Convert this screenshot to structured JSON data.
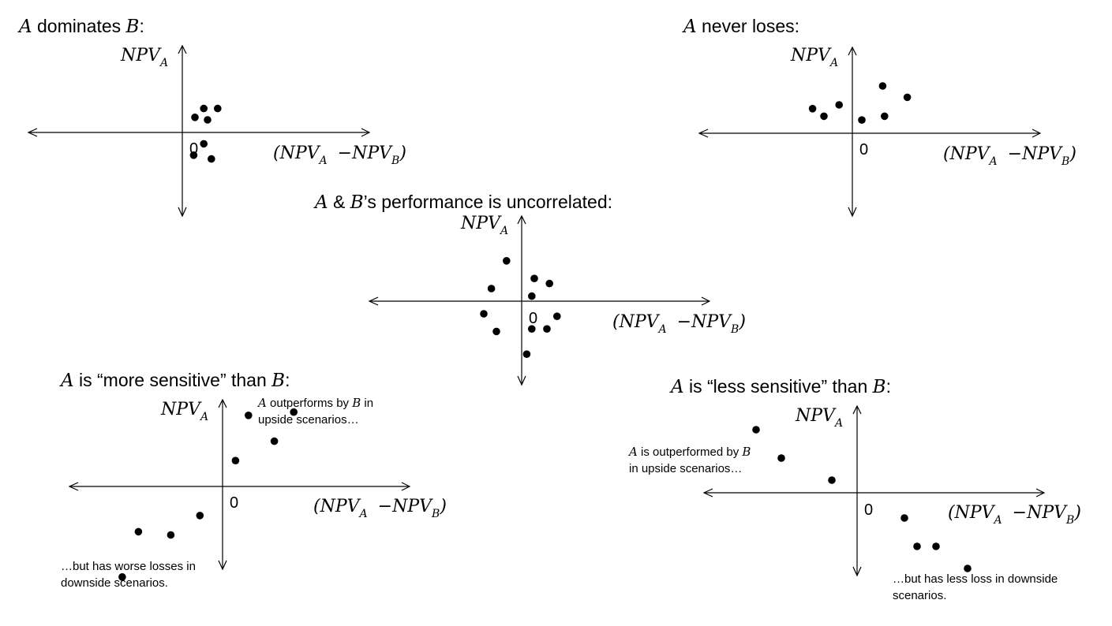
{
  "diagrams": [
    {
      "id": "dominates",
      "title_parts": [
        {
          "text": "A",
          "italic": true
        },
        {
          "text": " dominates ",
          "italic": false
        },
        {
          "text": "B",
          "italic": true
        },
        {
          "text": ":",
          "italic": false
        }
      ],
      "y_axis_label": "NPV",
      "y_axis_sub": "A",
      "x_axis_label": {
        "open": "(NPV",
        "subA": "A",
        "minus": " −NPV",
        "subB": "B",
        "close": ")"
      },
      "zero": "0",
      "points": [
        [
          1,
          1.2
        ],
        [
          1.7,
          1.9
        ],
        [
          2,
          1.0
        ],
        [
          2.8,
          1.9
        ],
        [
          1.7,
          -0.9
        ],
        [
          0.9,
          -1.8
        ],
        [
          2.3,
          -2.1
        ]
      ]
    },
    {
      "id": "never-loses",
      "title_parts": [
        {
          "text": "A",
          "italic": true
        },
        {
          "text": " never loses:",
          "italic": false
        }
      ],
      "y_axis_label": "NPV",
      "y_axis_sub": "A",
      "x_axis_label": {
        "open": "(NPV",
        "subA": "A",
        "minus": " −NPV",
        "subB": "B",
        "close": ")"
      },
      "zero": "0",
      "points": [
        [
          -2.1,
          1.3
        ],
        [
          -1.5,
          0.9
        ],
        [
          -0.7,
          1.5
        ],
        [
          0.5,
          0.7
        ],
        [
          1.6,
          2.5
        ],
        [
          1.7,
          0.9
        ],
        [
          2.9,
          1.9
        ]
      ]
    },
    {
      "id": "uncorrelated",
      "title_parts": [
        {
          "text": "A",
          "italic": true
        },
        {
          "text": " & ",
          "italic": false
        },
        {
          "text": "B",
          "italic": true
        },
        {
          "text": "’s performance is uncorrelated:",
          "italic": false
        }
      ],
      "y_axis_label": "NPV",
      "y_axis_sub": "A",
      "x_axis_label": {
        "open": "(NPV",
        "subA": "A",
        "minus": " −NPV",
        "subB": "B",
        "close": ")"
      },
      "zero": "0",
      "points": [
        [
          -0.6,
          1.6
        ],
        [
          -1.2,
          0.5
        ],
        [
          0.5,
          0.9
        ],
        [
          0.4,
          0.2
        ],
        [
          1.1,
          0.7
        ],
        [
          -1.5,
          -0.5
        ],
        [
          -1.0,
          -1.2
        ],
        [
          0.4,
          -1.1
        ],
        [
          1.0,
          -1.1
        ],
        [
          1.4,
          -0.6
        ],
        [
          0.2,
          -2.1
        ]
      ]
    },
    {
      "id": "more-sensitive",
      "title_parts": [
        {
          "text": "A",
          "italic": true
        },
        {
          "text": " is “more sensitive” than ",
          "italic": false
        },
        {
          "text": "B",
          "italic": true
        },
        {
          "text": ":",
          "italic": false
        }
      ],
      "y_axis_label": "NPV",
      "y_axis_sub": "A",
      "x_axis_label": {
        "open": "(NPV",
        "subA": "A",
        "minus": " −NPV",
        "subB": "B",
        "close": ")"
      },
      "zero": "0",
      "note_top": {
        "line1_parts": [
          {
            "text": "A",
            "italic": true
          },
          {
            "text": " outperforms by ",
            "italic": false
          },
          {
            "text": "B",
            "italic": true
          },
          {
            "text": " in",
            "italic": false
          }
        ],
        "line2": "upside scenarios…"
      },
      "note_bottom": {
        "line1": "…but has worse losses in",
        "line2": "downside scenarios."
      },
      "points": [
        [
          0.4,
          0.8
        ],
        [
          0.8,
          2.2
        ],
        [
          1.6,
          1.4
        ],
        [
          2.2,
          2.3
        ],
        [
          -0.7,
          -0.9
        ],
        [
          -1.6,
          -1.5
        ],
        [
          -2.6,
          -1.4
        ],
        [
          -3.1,
          -2.8
        ]
      ]
    },
    {
      "id": "less-sensitive",
      "title_parts": [
        {
          "text": "A",
          "italic": true
        },
        {
          "text": " is “less sensitive” than ",
          "italic": false
        },
        {
          "text": "B",
          "italic": true
        },
        {
          "text": ":",
          "italic": false
        }
      ],
      "y_axis_label": "NPV",
      "y_axis_sub": "A",
      "x_axis_label": {
        "open": "(NPV",
        "subA": "A",
        "minus": " −NPV",
        "subB": "B",
        "close": ")"
      },
      "zero": "0",
      "note_top": {
        "line1_parts": [
          {
            "text": "A",
            "italic": true
          },
          {
            "text": " is outperformed by ",
            "italic": false
          },
          {
            "text": "B",
            "italic": true
          }
        ],
        "line2": "in upside scenarios…"
      },
      "note_bottom": {
        "line1": "…but has less loss in downside",
        "line2": "scenarios."
      },
      "points": [
        [
          -3.2,
          2.0
        ],
        [
          -2.4,
          1.1
        ],
        [
          -0.8,
          0.4
        ],
        [
          1.5,
          -0.8
        ],
        [
          1.9,
          -1.7
        ],
        [
          2.5,
          -1.7
        ],
        [
          3.5,
          -2.4
        ]
      ]
    }
  ]
}
